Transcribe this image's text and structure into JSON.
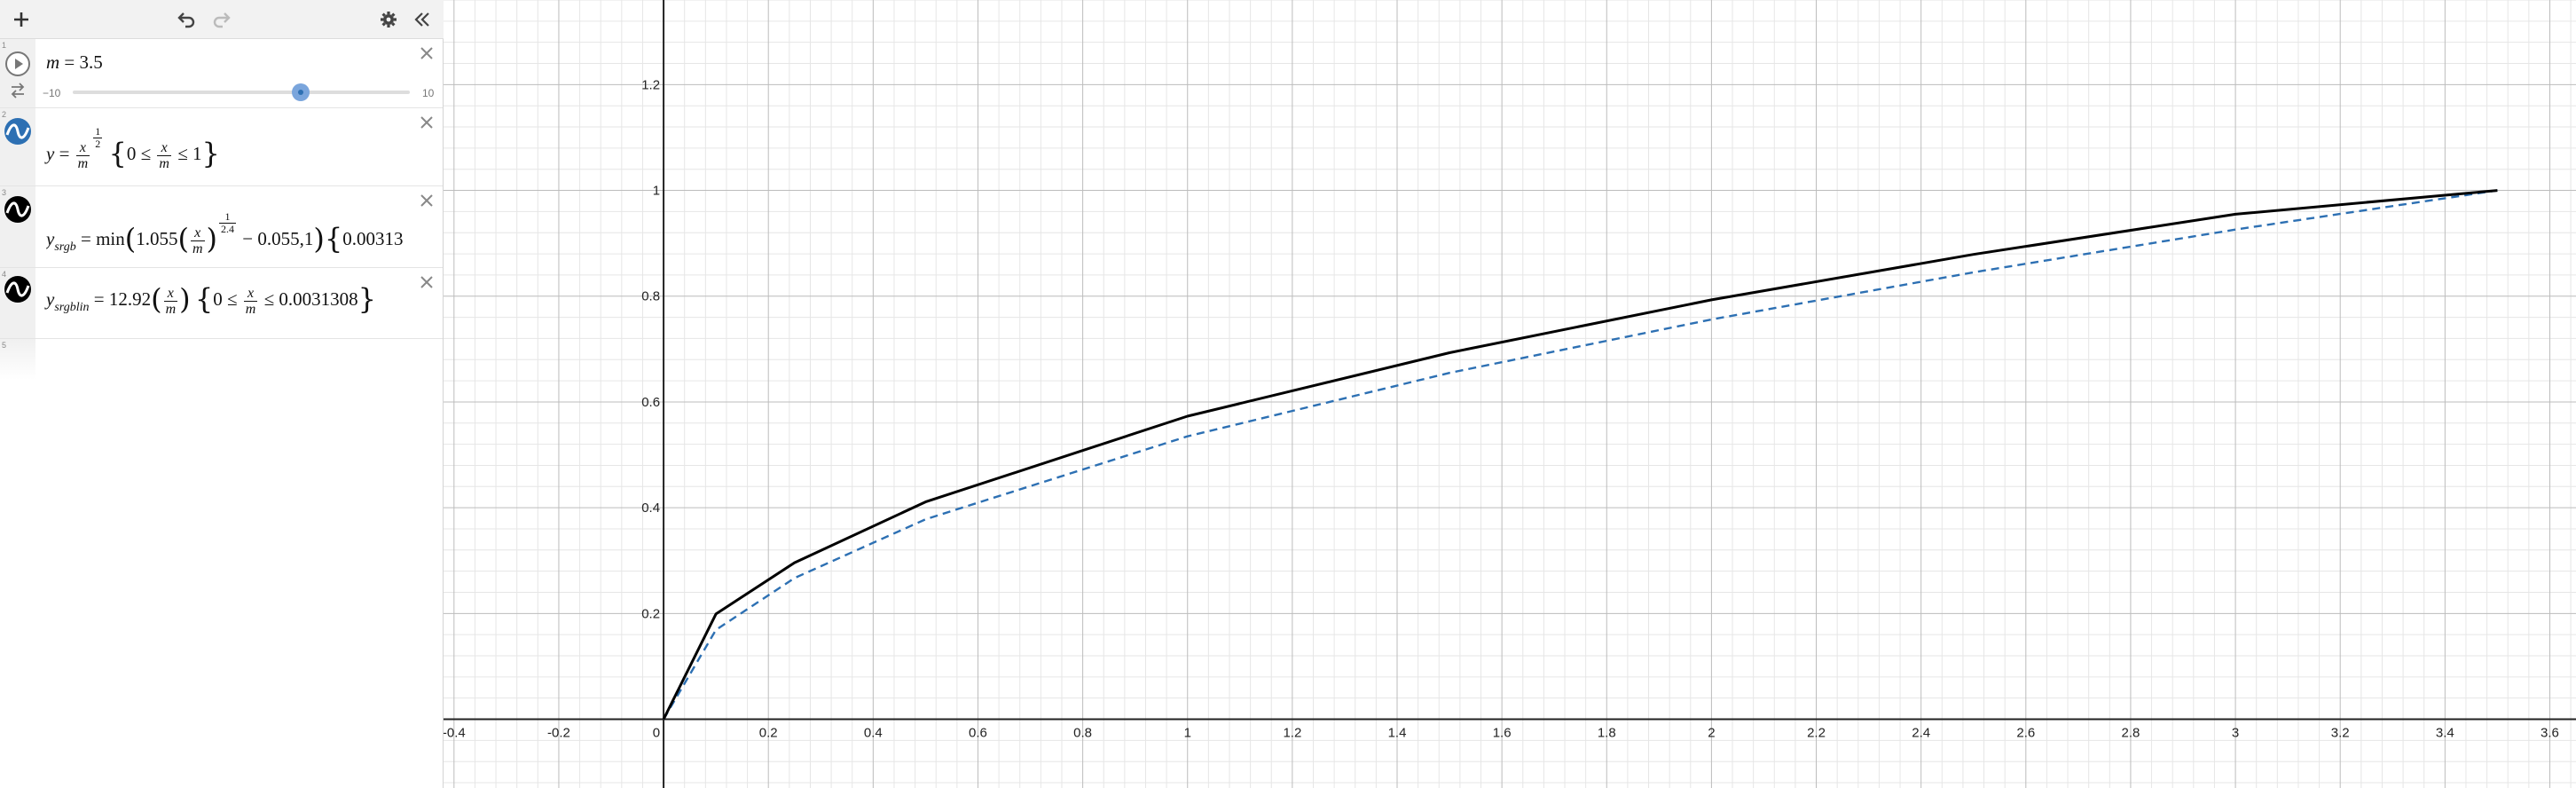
{
  "toolbar": {
    "add_icon": "plus-icon",
    "undo_icon": "undo-icon",
    "redo_icon": "redo-icon",
    "settings_icon": "gear-icon",
    "collapse_icon": "double-chevron-left-icon"
  },
  "expressions": [
    {
      "index": "1",
      "lhs": "m",
      "eq": "=",
      "value": "3.5",
      "slider": {
        "min_label": "−10",
        "max_label": "10",
        "min": -10,
        "max": 10,
        "value": 3.5
      }
    },
    {
      "index": "2",
      "color": "#2d70b3",
      "style": "dashed"
    },
    {
      "index": "3",
      "color": "#000000",
      "style": "solid"
    },
    {
      "index": "4",
      "color": "#000000",
      "style": "solid"
    },
    {
      "index": "5"
    }
  ],
  "expr2": {
    "y": "y",
    "eq": "=",
    "x": "x",
    "m": "m",
    "exp_num": "1",
    "exp_den": "2",
    "zero": "0",
    "le": "≤",
    "one": "1"
  },
  "expr3": {
    "y": "y",
    "sub": "srgb",
    "eq": "=",
    "min": "min",
    "coef": "1.055",
    "x": "x",
    "m": "m",
    "exp_num": "1",
    "exp_den": "2.4",
    "rest": "− 0.055,1",
    "cond": "0.00313"
  },
  "expr4": {
    "y": "y",
    "sub": "srgblin",
    "eq": "=",
    "coef": "12.92",
    "x": "x",
    "m": "m",
    "zero": "0",
    "le": "≤",
    "limit": "0.0031308"
  },
  "graph": {
    "x_ticks": [
      "-0.4",
      "-0.2",
      "0",
      "0.2",
      "0.4",
      "0.6",
      "0.8",
      "1",
      "1.2",
      "1.4",
      "1.6",
      "1.8",
      "2",
      "2.2",
      "2.4",
      "2.6",
      "2.8",
      "3",
      "3.2",
      "3.4",
      "3.6"
    ],
    "y_ticks": [
      "0.2",
      "0.4",
      "0.6",
      "0.8",
      "1",
      "1.2"
    ],
    "x_range": [
      -0.42,
      3.65
    ],
    "y_range": [
      -0.13,
      1.36
    ]
  },
  "chart_data": {
    "type": "line",
    "xlim": [
      -0.42,
      3.65
    ],
    "ylim": [
      -0.13,
      1.36
    ],
    "grid": true,
    "series": [
      {
        "color": "#2d70b3",
        "style": "dashed",
        "x": [
          0,
          0.1,
          0.25,
          0.5,
          1,
          1.5,
          2,
          2.5,
          3,
          3.5
        ],
        "y": [
          0,
          0.169,
          0.267,
          0.378,
          0.535,
          0.655,
          0.756,
          0.845,
          0.926,
          1.0
        ]
      },
      {
        "color": "#000000",
        "style": "solid",
        "x": [
          0,
          0.1,
          0.25,
          0.5,
          1,
          1.5,
          2,
          2.5,
          3,
          3.5
        ],
        "y": [
          0,
          0.199,
          0.296,
          0.411,
          0.573,
          0.693,
          0.793,
          0.879,
          0.955,
          1.0
        ]
      }
    ]
  }
}
